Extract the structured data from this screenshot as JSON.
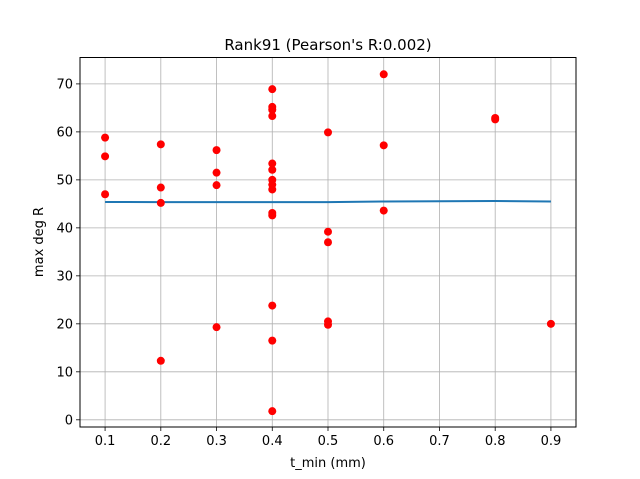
{
  "chart_data": {
    "type": "scatter",
    "title": "Rank91 (Pearson's R:0.002)",
    "xlabel": "t_min (mm)",
    "ylabel": "max deg R",
    "xlim": [
      0.055,
      0.945
    ],
    "ylim": [
      -1.5,
      75.5
    ],
    "x_ticks": [
      0.1,
      0.2,
      0.3,
      0.4,
      0.5,
      0.6,
      0.7,
      0.8,
      0.9
    ],
    "x_tick_labels": [
      "0.1",
      "0.2",
      "0.3",
      "0.4",
      "0.5",
      "0.6",
      "0.7",
      "0.8",
      "0.9"
    ],
    "y_ticks": [
      0,
      10,
      20,
      30,
      40,
      50,
      60,
      70
    ],
    "y_tick_labels": [
      "0",
      "10",
      "20",
      "30",
      "40",
      "50",
      "60",
      "70"
    ],
    "grid": true,
    "colors": {
      "points": "#ff0000",
      "fit_line": "#1f77b4",
      "grid": "#b0b0b0"
    },
    "points": [
      {
        "x": 0.1,
        "y": 58.8
      },
      {
        "x": 0.1,
        "y": 54.9
      },
      {
        "x": 0.1,
        "y": 47.0
      },
      {
        "x": 0.2,
        "y": 57.4
      },
      {
        "x": 0.2,
        "y": 48.4
      },
      {
        "x": 0.2,
        "y": 45.2
      },
      {
        "x": 0.2,
        "y": 12.3
      },
      {
        "x": 0.3,
        "y": 56.2
      },
      {
        "x": 0.3,
        "y": 51.5
      },
      {
        "x": 0.3,
        "y": 48.9
      },
      {
        "x": 0.3,
        "y": 19.3
      },
      {
        "x": 0.4,
        "y": 68.9
      },
      {
        "x": 0.4,
        "y": 65.2
      },
      {
        "x": 0.4,
        "y": 64.6
      },
      {
        "x": 0.4,
        "y": 63.3
      },
      {
        "x": 0.4,
        "y": 53.4
      },
      {
        "x": 0.4,
        "y": 52.1
      },
      {
        "x": 0.4,
        "y": 50.0
      },
      {
        "x": 0.4,
        "y": 49.0
      },
      {
        "x": 0.4,
        "y": 48.0
      },
      {
        "x": 0.4,
        "y": 43.1
      },
      {
        "x": 0.4,
        "y": 42.6
      },
      {
        "x": 0.4,
        "y": 23.8
      },
      {
        "x": 0.4,
        "y": 16.5
      },
      {
        "x": 0.4,
        "y": 1.8
      },
      {
        "x": 0.5,
        "y": 59.9
      },
      {
        "x": 0.5,
        "y": 39.2
      },
      {
        "x": 0.5,
        "y": 37.0
      },
      {
        "x": 0.5,
        "y": 20.5
      },
      {
        "x": 0.5,
        "y": 19.8
      },
      {
        "x": 0.6,
        "y": 72.0
      },
      {
        "x": 0.6,
        "y": 57.2
      },
      {
        "x": 0.6,
        "y": 43.6
      },
      {
        "x": 0.8,
        "y": 62.9
      },
      {
        "x": 0.8,
        "y": 62.6
      },
      {
        "x": 0.9,
        "y": 20.0
      }
    ],
    "fit_line": [
      {
        "x": 0.1,
        "y": 45.4
      },
      {
        "x": 0.2,
        "y": 45.35
      },
      {
        "x": 0.3,
        "y": 45.35
      },
      {
        "x": 0.4,
        "y": 45.35
      },
      {
        "x": 0.5,
        "y": 45.35
      },
      {
        "x": 0.6,
        "y": 45.5
      },
      {
        "x": 0.8,
        "y": 45.6
      },
      {
        "x": 0.9,
        "y": 45.5
      }
    ]
  }
}
